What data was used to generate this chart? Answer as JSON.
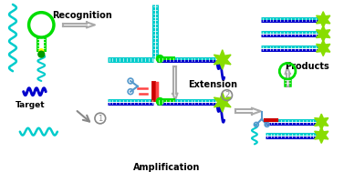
{
  "colors": {
    "cyan": "#00CCCC",
    "bright_cyan": "#00FFFF",
    "green": "#00DD00",
    "dark_green": "#009900",
    "blue": "#0000CC",
    "red": "#CC0000",
    "pink_red": "#FF4444",
    "yellow": "#FFFF00",
    "star_green": "#88DD00",
    "arrow_gray": "#AAAAAA",
    "scissors_blue": "#5599CC",
    "white": "#FFFFFF",
    "black": "#000000",
    "gray": "#888888"
  },
  "labels": {
    "recognition": "Recognition",
    "extension": "Extension",
    "amplification": "Amplification",
    "target": "Target",
    "products": "Products"
  },
  "figsize": [
    3.77,
    1.89
  ],
  "dpi": 100,
  "xlim": [
    0,
    377
  ],
  "ylim": [
    0,
    189
  ]
}
